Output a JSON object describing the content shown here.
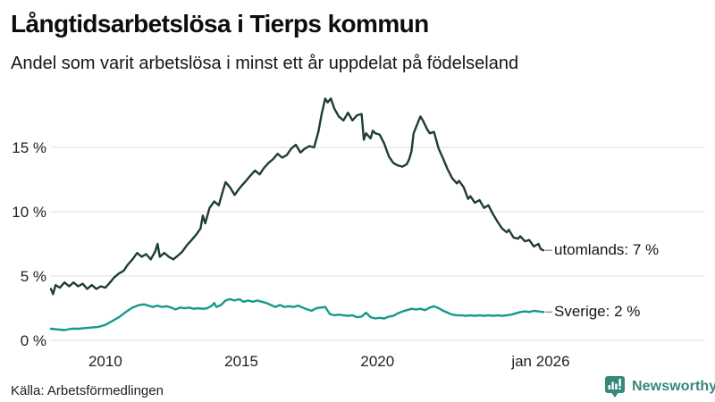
{
  "header": {
    "title": "Långtidsarbetslösa i Tierps kommun",
    "subtitle": "Andel som varit arbetslösa i minst ett år uppdelat på födelseland"
  },
  "footer": {
    "source": "Källa: Arbetsförmedlingen",
    "brand": "Newsworthy"
  },
  "colors": {
    "utomlands_line": "#1e3c36",
    "sverige_line": "#149a8a",
    "grid": "#dedede",
    "axis_text": "#222222",
    "label_text": "#141414",
    "connector": "#9a9a9a",
    "brand_teal": "#35897b"
  },
  "chart_data": {
    "type": "line",
    "title": "Långtidsarbetslösa i Tierps kommun",
    "subtitle": "Andel som varit arbetslösa i minst ett år uppdelat på födelseland",
    "unit": "%",
    "x_domain": [
      2008.0,
      2026.1
    ],
    "y_domain": [
      0,
      19.5
    ],
    "grid": true,
    "legend_position": "line-end-labels",
    "x_ticks": [
      {
        "v": 2010,
        "label": "2010"
      },
      {
        "v": 2015,
        "label": "2015"
      },
      {
        "v": 2020,
        "label": "2020"
      },
      {
        "v": 2026,
        "label": "jan 2026"
      }
    ],
    "y_ticks": [
      {
        "v": 0,
        "label": "0 %"
      },
      {
        "v": 5,
        "label": "5 %"
      },
      {
        "v": 10,
        "label": "10 %"
      },
      {
        "v": 15,
        "label": "15 %"
      }
    ],
    "series": [
      {
        "name": "utomlands",
        "end_label": "utomlands: 7 %",
        "end_value": 7,
        "color_key": "utomlands_line",
        "points": [
          [
            2008.0,
            4.0
          ],
          [
            2008.08,
            3.6
          ],
          [
            2008.17,
            4.3
          ],
          [
            2008.33,
            4.1
          ],
          [
            2008.5,
            4.5
          ],
          [
            2008.67,
            4.2
          ],
          [
            2008.83,
            4.5
          ],
          [
            2009.0,
            4.2
          ],
          [
            2009.17,
            4.4
          ],
          [
            2009.33,
            4.0
          ],
          [
            2009.5,
            4.3
          ],
          [
            2009.67,
            4.0
          ],
          [
            2009.83,
            4.2
          ],
          [
            2010.0,
            4.1
          ],
          [
            2010.17,
            4.5
          ],
          [
            2010.33,
            4.9
          ],
          [
            2010.5,
            5.2
          ],
          [
            2010.67,
            5.4
          ],
          [
            2010.83,
            5.9
          ],
          [
            2011.0,
            6.3
          ],
          [
            2011.17,
            6.8
          ],
          [
            2011.33,
            6.5
          ],
          [
            2011.5,
            6.7
          ],
          [
            2011.67,
            6.3
          ],
          [
            2011.83,
            6.9
          ],
          [
            2011.92,
            7.5
          ],
          [
            2012.0,
            6.5
          ],
          [
            2012.17,
            6.8
          ],
          [
            2012.33,
            6.5
          ],
          [
            2012.5,
            6.3
          ],
          [
            2012.67,
            6.6
          ],
          [
            2012.83,
            6.9
          ],
          [
            2013.0,
            7.4
          ],
          [
            2013.17,
            7.8
          ],
          [
            2013.33,
            8.2
          ],
          [
            2013.5,
            8.7
          ],
          [
            2013.58,
            9.7
          ],
          [
            2013.67,
            9.1
          ],
          [
            2013.83,
            10.3
          ],
          [
            2014.0,
            10.8
          ],
          [
            2014.17,
            10.5
          ],
          [
            2014.33,
            11.7
          ],
          [
            2014.42,
            12.3
          ],
          [
            2014.58,
            11.9
          ],
          [
            2014.75,
            11.3
          ],
          [
            2014.92,
            11.8
          ],
          [
            2015.0,
            12.0
          ],
          [
            2015.17,
            12.4
          ],
          [
            2015.33,
            12.8
          ],
          [
            2015.5,
            13.2
          ],
          [
            2015.67,
            12.9
          ],
          [
            2015.83,
            13.4
          ],
          [
            2016.0,
            13.8
          ],
          [
            2016.17,
            14.1
          ],
          [
            2016.33,
            14.5
          ],
          [
            2016.5,
            14.2
          ],
          [
            2016.67,
            14.4
          ],
          [
            2016.83,
            14.9
          ],
          [
            2017.0,
            15.2
          ],
          [
            2017.17,
            14.6
          ],
          [
            2017.33,
            14.9
          ],
          [
            2017.5,
            15.1
          ],
          [
            2017.67,
            15.0
          ],
          [
            2017.83,
            16.2
          ],
          [
            2017.95,
            17.6
          ],
          [
            2018.08,
            18.8
          ],
          [
            2018.17,
            18.5
          ],
          [
            2018.29,
            18.8
          ],
          [
            2018.42,
            18.0
          ],
          [
            2018.58,
            17.4
          ],
          [
            2018.75,
            17.1
          ],
          [
            2018.92,
            17.7
          ],
          [
            2019.08,
            17.1
          ],
          [
            2019.25,
            17.5
          ],
          [
            2019.42,
            17.6
          ],
          [
            2019.5,
            15.6
          ],
          [
            2019.58,
            16.1
          ],
          [
            2019.75,
            15.7
          ],
          [
            2019.83,
            16.3
          ],
          [
            2019.92,
            16.1
          ],
          [
            2020.08,
            16.0
          ],
          [
            2020.25,
            15.3
          ],
          [
            2020.42,
            14.3
          ],
          [
            2020.58,
            13.8
          ],
          [
            2020.75,
            13.6
          ],
          [
            2020.92,
            13.5
          ],
          [
            2021.08,
            13.7
          ],
          [
            2021.17,
            14.1
          ],
          [
            2021.25,
            14.7
          ],
          [
            2021.33,
            16.1
          ],
          [
            2021.5,
            17.0
          ],
          [
            2021.58,
            17.4
          ],
          [
            2021.67,
            17.1
          ],
          [
            2021.83,
            16.4
          ],
          [
            2021.92,
            16.1
          ],
          [
            2022.08,
            16.2
          ],
          [
            2022.25,
            14.9
          ],
          [
            2022.42,
            14.1
          ],
          [
            2022.58,
            13.3
          ],
          [
            2022.75,
            12.6
          ],
          [
            2022.92,
            12.2
          ],
          [
            2023.0,
            12.4
          ],
          [
            2023.17,
            11.9
          ],
          [
            2023.33,
            11.0
          ],
          [
            2023.42,
            11.2
          ],
          [
            2023.58,
            10.7
          ],
          [
            2023.75,
            10.9
          ],
          [
            2023.92,
            10.3
          ],
          [
            2024.08,
            10.5
          ],
          [
            2024.25,
            9.8
          ],
          [
            2024.42,
            9.2
          ],
          [
            2024.58,
            8.7
          ],
          [
            2024.75,
            8.4
          ],
          [
            2024.83,
            8.6
          ],
          [
            2025.0,
            8.0
          ],
          [
            2025.17,
            7.9
          ],
          [
            2025.25,
            8.1
          ],
          [
            2025.42,
            7.7
          ],
          [
            2025.58,
            7.8
          ],
          [
            2025.75,
            7.3
          ],
          [
            2025.92,
            7.5
          ],
          [
            2026.0,
            7.1
          ],
          [
            2026.1,
            7.0
          ]
        ]
      },
      {
        "name": "Sverige",
        "end_label": "Sverige: 2 %",
        "end_value": 2,
        "color_key": "sverige_line",
        "points": [
          [
            2008.0,
            0.9
          ],
          [
            2008.25,
            0.85
          ],
          [
            2008.5,
            0.8
          ],
          [
            2008.75,
            0.9
          ],
          [
            2009.0,
            0.9
          ],
          [
            2009.25,
            0.95
          ],
          [
            2009.5,
            1.0
          ],
          [
            2009.75,
            1.05
          ],
          [
            2010.0,
            1.2
          ],
          [
            2010.25,
            1.5
          ],
          [
            2010.5,
            1.8
          ],
          [
            2010.75,
            2.2
          ],
          [
            2011.0,
            2.55
          ],
          [
            2011.25,
            2.75
          ],
          [
            2011.42,
            2.8
          ],
          [
            2011.58,
            2.7
          ],
          [
            2011.75,
            2.6
          ],
          [
            2011.92,
            2.7
          ],
          [
            2012.08,
            2.6
          ],
          [
            2012.25,
            2.65
          ],
          [
            2012.42,
            2.55
          ],
          [
            2012.58,
            2.4
          ],
          [
            2012.75,
            2.55
          ],
          [
            2012.92,
            2.5
          ],
          [
            2013.08,
            2.55
          ],
          [
            2013.25,
            2.45
          ],
          [
            2013.42,
            2.5
          ],
          [
            2013.58,
            2.45
          ],
          [
            2013.75,
            2.5
          ],
          [
            2013.92,
            2.7
          ],
          [
            2014.0,
            2.9
          ],
          [
            2014.08,
            2.6
          ],
          [
            2014.25,
            2.75
          ],
          [
            2014.42,
            3.1
          ],
          [
            2014.58,
            3.2
          ],
          [
            2014.75,
            3.1
          ],
          [
            2014.92,
            3.2
          ],
          [
            2015.08,
            3.0
          ],
          [
            2015.25,
            3.1
          ],
          [
            2015.42,
            3.0
          ],
          [
            2015.58,
            3.1
          ],
          [
            2015.75,
            3.0
          ],
          [
            2015.92,
            2.9
          ],
          [
            2016.08,
            2.75
          ],
          [
            2016.25,
            2.6
          ],
          [
            2016.42,
            2.75
          ],
          [
            2016.58,
            2.6
          ],
          [
            2016.75,
            2.65
          ],
          [
            2016.92,
            2.6
          ],
          [
            2017.08,
            2.7
          ],
          [
            2017.25,
            2.55
          ],
          [
            2017.42,
            2.4
          ],
          [
            2017.58,
            2.3
          ],
          [
            2017.75,
            2.5
          ],
          [
            2017.92,
            2.55
          ],
          [
            2018.08,
            2.6
          ],
          [
            2018.25,
            2.05
          ],
          [
            2018.42,
            1.95
          ],
          [
            2018.58,
            2.0
          ],
          [
            2018.75,
            1.95
          ],
          [
            2018.92,
            1.9
          ],
          [
            2019.08,
            1.95
          ],
          [
            2019.25,
            1.8
          ],
          [
            2019.42,
            1.85
          ],
          [
            2019.58,
            2.15
          ],
          [
            2019.75,
            1.8
          ],
          [
            2019.92,
            1.7
          ],
          [
            2020.08,
            1.75
          ],
          [
            2020.25,
            1.7
          ],
          [
            2020.42,
            1.85
          ],
          [
            2020.58,
            1.9
          ],
          [
            2020.75,
            2.1
          ],
          [
            2020.92,
            2.25
          ],
          [
            2021.08,
            2.35
          ],
          [
            2021.25,
            2.45
          ],
          [
            2021.42,
            2.4
          ],
          [
            2021.58,
            2.45
          ],
          [
            2021.75,
            2.35
          ],
          [
            2021.92,
            2.55
          ],
          [
            2022.08,
            2.65
          ],
          [
            2022.25,
            2.5
          ],
          [
            2022.42,
            2.3
          ],
          [
            2022.58,
            2.15
          ],
          [
            2022.75,
            2.0
          ],
          [
            2022.92,
            1.95
          ],
          [
            2023.08,
            1.95
          ],
          [
            2023.25,
            1.9
          ],
          [
            2023.42,
            1.95
          ],
          [
            2023.58,
            1.9
          ],
          [
            2023.75,
            1.95
          ],
          [
            2023.92,
            1.9
          ],
          [
            2024.08,
            1.95
          ],
          [
            2024.25,
            1.9
          ],
          [
            2024.42,
            1.95
          ],
          [
            2024.58,
            1.9
          ],
          [
            2024.75,
            1.95
          ],
          [
            2024.92,
            2.0
          ],
          [
            2025.08,
            2.1
          ],
          [
            2025.25,
            2.2
          ],
          [
            2025.42,
            2.25
          ],
          [
            2025.58,
            2.2
          ],
          [
            2025.75,
            2.3
          ],
          [
            2025.92,
            2.25
          ],
          [
            2026.1,
            2.2
          ]
        ]
      }
    ]
  }
}
